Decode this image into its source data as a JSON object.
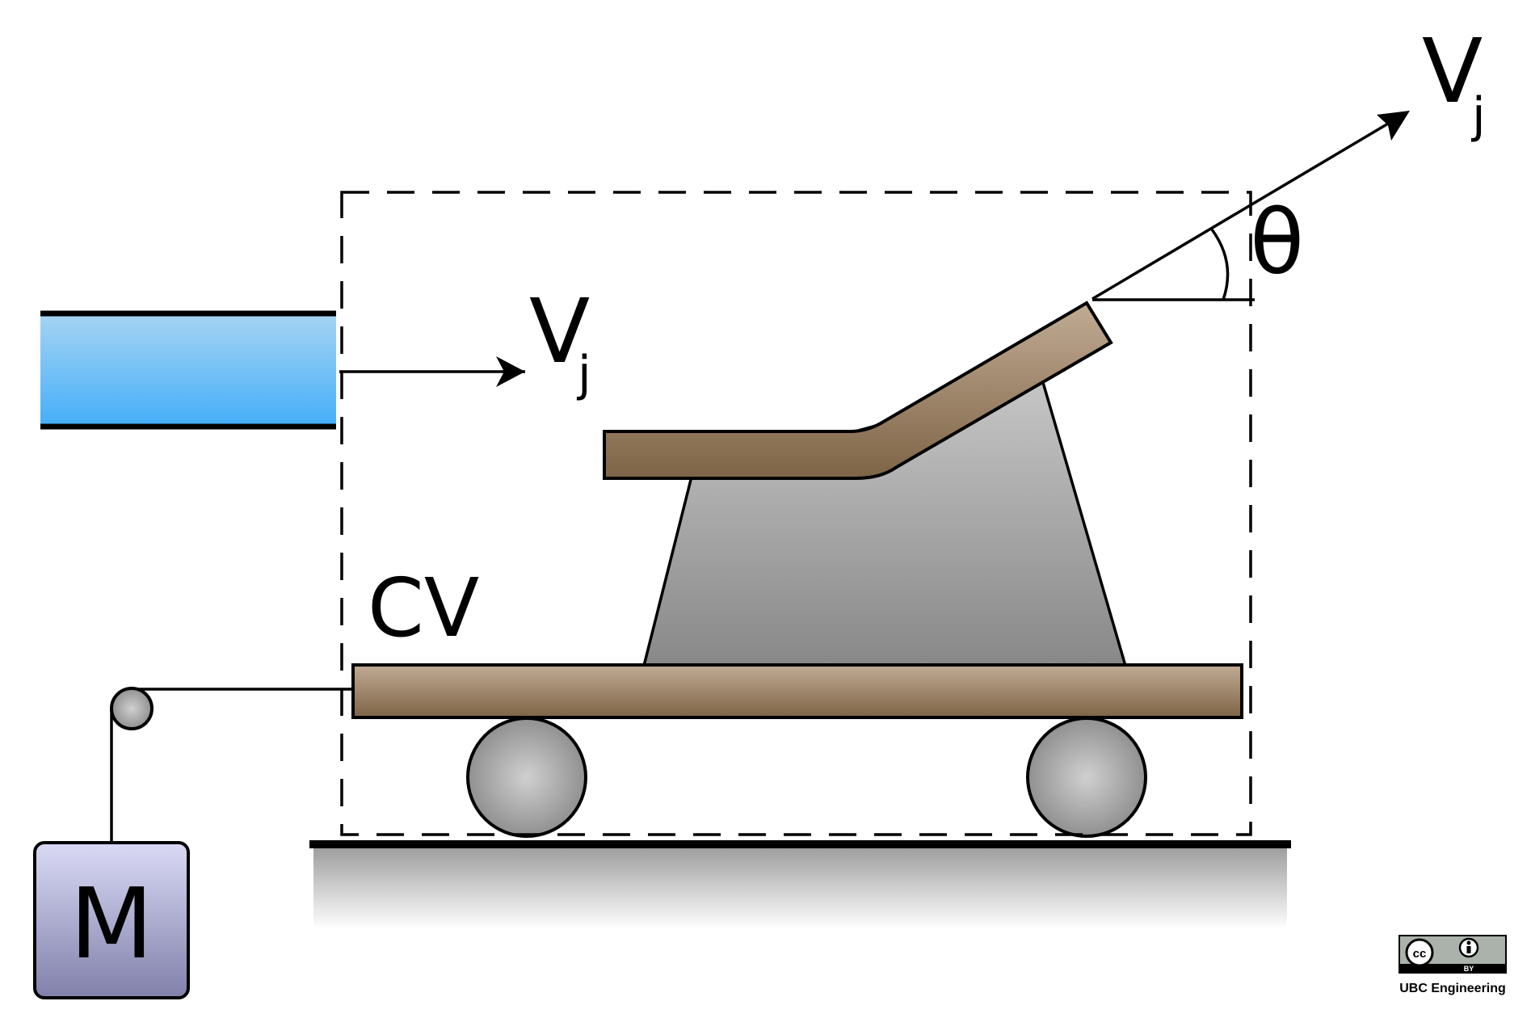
{
  "labels": {
    "v_jet_in": "V",
    "v_jet_in_sub": "j",
    "v_jet_out": "V",
    "v_jet_out_sub": "j",
    "theta": "θ",
    "control_volume": "CV",
    "mass": "M"
  },
  "license": {
    "cc": "cc",
    "by": "BY",
    "credit": "UBC Engineering"
  },
  "colors": {
    "jet_top": "#a6d4f2",
    "jet_bottom": "#44aef9",
    "wood_light": "#c1ab94",
    "wood_dark": "#7e6446",
    "support_light": "#c4c4c4",
    "support_dark": "#8a8a8a",
    "mass_light": "#d9d9f5",
    "mass_dark": "#7f7fa8"
  }
}
